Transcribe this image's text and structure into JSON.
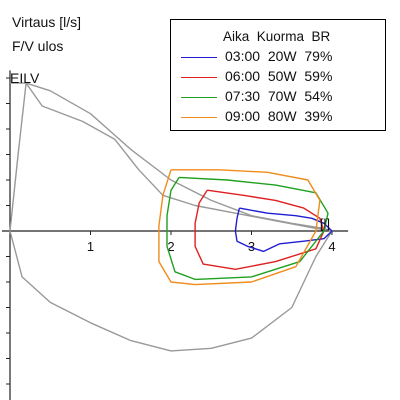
{
  "chart_data": {
    "type": "line",
    "title": "",
    "ylabel_lines": [
      "Virtaus [l/s]",
      "F/V ulos"
    ],
    "corner_label": "EILV",
    "x_end_marker": "[l]",
    "xlabel": "",
    "x_ticks": [
      "1",
      "2",
      "3",
      "4"
    ],
    "xlim": [
      -0.1,
      4.2
    ],
    "ylim": [
      -6.8,
      6.3
    ],
    "grid": false,
    "legend": {
      "placement": "top-right",
      "header": "Aika  Kuorma  BR",
      "entries": [
        {
          "label": "03:00  20W  79%",
          "color": "#1f1fd1"
        },
        {
          "label": "06:00  50W  59%",
          "color": "#e02020"
        },
        {
          "label": "07:30  70W  54%",
          "color": "#1fa01f"
        },
        {
          "label": "09:00  80W  39%",
          "color": "#f08c1c"
        }
      ]
    },
    "reference_curves": [
      {
        "color": "#999999",
        "points": [
          [
            0.0,
            5.8
          ],
          [
            0.2,
            5.8
          ],
          [
            0.5,
            5.5
          ],
          [
            1.0,
            4.6
          ],
          [
            1.5,
            3.2
          ],
          [
            2.0,
            2.0
          ],
          [
            2.5,
            1.2
          ],
          [
            3.0,
            0.6
          ],
          [
            3.5,
            0.3
          ],
          [
            3.9,
            0.1
          ],
          [
            4.0,
            0.0
          ]
        ]
      },
      {
        "color": "#999999",
        "points": [
          [
            0.2,
            5.8
          ],
          [
            0.4,
            4.9
          ],
          [
            0.9,
            4.3
          ],
          [
            1.3,
            3.6
          ],
          [
            1.6,
            2.4
          ],
          [
            1.9,
            1.4
          ],
          [
            2.3,
            1.0
          ],
          [
            2.8,
            0.7
          ],
          [
            3.3,
            0.4
          ],
          [
            3.8,
            0.1
          ],
          [
            4.0,
            0.0
          ]
        ]
      },
      {
        "color": "#999999",
        "points": [
          [
            0.0,
            0.0
          ],
          [
            0.15,
            -1.8
          ],
          [
            0.5,
            -2.8
          ],
          [
            1.0,
            -3.6
          ],
          [
            1.5,
            -4.3
          ],
          [
            2.0,
            -4.7
          ],
          [
            2.5,
            -4.6
          ],
          [
            3.0,
            -4.2
          ],
          [
            3.5,
            -3.0
          ],
          [
            3.8,
            -1.0
          ],
          [
            4.0,
            0.0
          ]
        ]
      },
      {
        "color": "#999999",
        "points": [
          [
            0.0,
            0.0
          ],
          [
            0.1,
            3.0
          ],
          [
            0.2,
            5.8
          ]
        ]
      }
    ],
    "series": [
      {
        "name": "03:00  20W  79%",
        "color": "#1f1fd1",
        "points": [
          [
            2.85,
            0.9
          ],
          [
            3.2,
            0.7
          ],
          [
            3.55,
            0.6
          ],
          [
            3.75,
            0.5
          ],
          [
            3.9,
            0.3
          ],
          [
            4.0,
            0.0
          ],
          [
            3.9,
            -0.3
          ],
          [
            3.65,
            -0.4
          ],
          [
            3.35,
            -0.5
          ],
          [
            3.15,
            -0.8
          ],
          [
            2.95,
            -0.6
          ],
          [
            2.82,
            -0.4
          ],
          [
            2.8,
            0.0
          ],
          [
            2.82,
            0.5
          ],
          [
            2.85,
            0.9
          ]
        ]
      },
      {
        "name": "06:00  50W  59%",
        "color": "#e02020",
        "points": [
          [
            2.45,
            1.6
          ],
          [
            2.9,
            1.4
          ],
          [
            3.3,
            1.2
          ],
          [
            3.65,
            0.9
          ],
          [
            3.85,
            0.5
          ],
          [
            3.9,
            0.0
          ],
          [
            3.8,
            -0.7
          ],
          [
            3.3,
            -1.2
          ],
          [
            2.8,
            -1.5
          ],
          [
            2.4,
            -1.3
          ],
          [
            2.3,
            -0.6
          ],
          [
            2.3,
            0.3
          ],
          [
            2.35,
            1.1
          ],
          [
            2.45,
            1.6
          ]
        ]
      },
      {
        "name": "07:30  70W  54%",
        "color": "#1fa01f",
        "points": [
          [
            2.1,
            2.1
          ],
          [
            2.7,
            2.0
          ],
          [
            3.3,
            1.8
          ],
          [
            3.8,
            1.5
          ],
          [
            3.95,
            0.7
          ],
          [
            3.9,
            0.0
          ],
          [
            3.6,
            -1.2
          ],
          [
            3.0,
            -1.8
          ],
          [
            2.3,
            -1.9
          ],
          [
            2.05,
            -1.6
          ],
          [
            1.95,
            -0.6
          ],
          [
            1.95,
            0.6
          ],
          [
            2.0,
            1.6
          ],
          [
            2.1,
            2.1
          ]
        ]
      },
      {
        "name": "09:00  80W  39%",
        "color": "#f08c1c",
        "points": [
          [
            2.0,
            2.4
          ],
          [
            2.6,
            2.4
          ],
          [
            3.2,
            2.3
          ],
          [
            3.7,
            2.0
          ],
          [
            3.85,
            1.2
          ],
          [
            3.8,
            0.0
          ],
          [
            3.55,
            -1.4
          ],
          [
            3.0,
            -2.0
          ],
          [
            2.3,
            -2.1
          ],
          [
            2.0,
            -2.0
          ],
          [
            1.85,
            -1.2
          ],
          [
            1.85,
            0.2
          ],
          [
            1.9,
            1.4
          ],
          [
            2.0,
            2.4
          ]
        ]
      }
    ]
  }
}
